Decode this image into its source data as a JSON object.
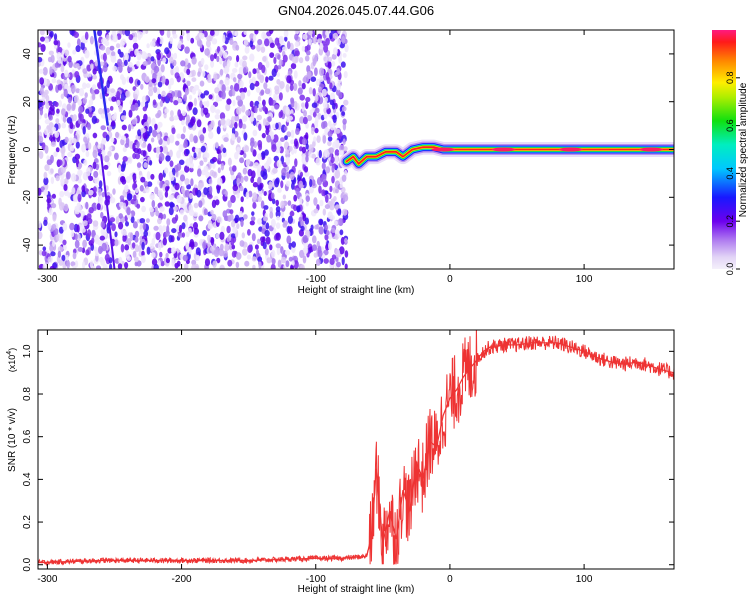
{
  "title": "GN04.2026.045.07.44.G06",
  "chart_data": [
    {
      "type": "heatmap",
      "xlabel": "Height of straight line (km)",
      "ylabel": "Frequency (Hz)",
      "xlim": [
        -307,
        167
      ],
      "ylim": [
        -50,
        50
      ],
      "xticks": [
        -300,
        -200,
        -100,
        0,
        100
      ],
      "yticks": [
        -40,
        -20,
        0,
        20,
        40
      ],
      "xtick_labels": [
        "-300",
        "-200",
        "-100",
        "0",
        "100"
      ],
      "ytick_labels": [
        "-40",
        "-20",
        "0",
        "20",
        "40"
      ],
      "noise_region": {
        "x_from": -307,
        "x_to": -77,
        "level": "low (0.1-0.3)"
      },
      "ridge_points": [
        {
          "x": -77,
          "y": -5
        },
        {
          "x": -72,
          "y": -3
        },
        {
          "x": -68,
          "y": -6
        },
        {
          "x": -62,
          "y": -3
        },
        {
          "x": -55,
          "y": -3
        },
        {
          "x": -48,
          "y": -1
        },
        {
          "x": -40,
          "y": -1
        },
        {
          "x": -35,
          "y": -3
        },
        {
          "x": -28,
          "y": 0
        },
        {
          "x": -20,
          "y": 1
        },
        {
          "x": -12,
          "y": 1
        },
        {
          "x": -5,
          "y": 0
        },
        {
          "x": 10,
          "y": 0
        },
        {
          "x": 40,
          "y": 0
        },
        {
          "x": 80,
          "y": 0
        },
        {
          "x": 120,
          "y": 0
        },
        {
          "x": 167,
          "y": 0
        }
      ],
      "grid": false
    },
    {
      "type": "colorbar",
      "label": "Normalized spectral amplitude",
      "range": [
        0,
        1
      ],
      "ticks": [
        0.0,
        0.2,
        0.4,
        0.6,
        0.8
      ],
      "tick_labels": [
        "0.0",
        "0.2",
        "0.4",
        "0.6",
        "0.8"
      ]
    },
    {
      "type": "line",
      "xlabel": "Height of straight line (km)",
      "ylabel": "SNR (10 * v/v)",
      "y_multiplier": "(x10",
      "y_multiplier_exp": "4",
      "xlim": [
        -307,
        167
      ],
      "ylim": [
        -0.02,
        1.1
      ],
      "xticks": [
        -300,
        -200,
        -100,
        0,
        100
      ],
      "yticks": [
        0.0,
        0.2,
        0.4,
        0.6,
        0.8,
        1.0
      ],
      "xtick_labels": [
        "-300",
        "-200",
        "-100",
        "0",
        "100"
      ],
      "ytick_labels": [
        "0.0",
        "0.2",
        "0.4",
        "0.6",
        "0.8",
        "1.0"
      ],
      "color": "#ee3333",
      "series": [
        {
          "x": [
            -307,
            -260,
            -200,
            -150,
            -100,
            -80,
            -62,
            -58,
            -55,
            -50,
            -45,
            -40,
            -35,
            -30,
            -25,
            -20,
            -15,
            -10,
            -5,
            0,
            5,
            10,
            15,
            20,
            25,
            30,
            40,
            50,
            60,
            70,
            80,
            90,
            100,
            110,
            120,
            130,
            140,
            150,
            160,
            167
          ],
          "values": [
            0.01,
            0.02,
            0.02,
            0.02,
            0.03,
            0.03,
            0.04,
            0.15,
            0.45,
            0.1,
            0.25,
            0.12,
            0.35,
            0.25,
            0.48,
            0.4,
            0.58,
            0.55,
            0.7,
            0.78,
            0.82,
            0.88,
            0.92,
            0.96,
            1.0,
            1.02,
            1.03,
            1.03,
            1.04,
            1.04,
            1.04,
            1.02,
            1.0,
            0.97,
            0.95,
            0.94,
            0.95,
            0.93,
            0.91,
            0.9
          ]
        }
      ],
      "grid": false
    }
  ]
}
